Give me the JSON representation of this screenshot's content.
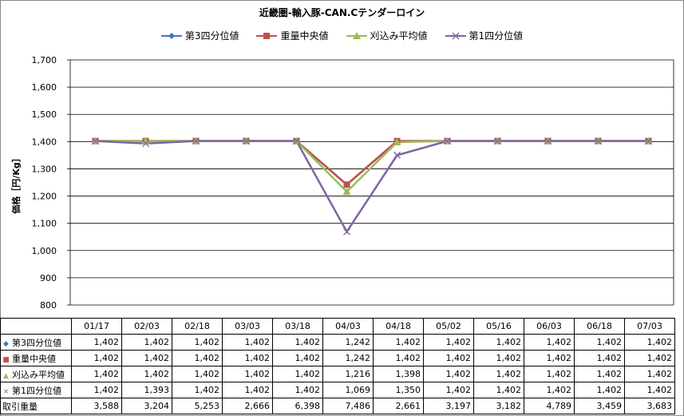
{
  "chart_data": {
    "type": "line",
    "title": "近畿圏-輸入豚-CAN.Cテンダーロイン",
    "ylabel": "価格［円/Kg］",
    "ylim": [
      800,
      1700
    ],
    "yticks": [
      "800",
      "900",
      "1,000",
      "1,100",
      "1,200",
      "1,300",
      "1,400",
      "1,500",
      "1,600",
      "1,700"
    ],
    "grid": true,
    "legend_position": "top",
    "categories": [
      "01/17",
      "02/03",
      "02/18",
      "03/03",
      "03/18",
      "04/03",
      "04/18",
      "05/02",
      "05/16",
      "06/03",
      "06/18",
      "07/03"
    ],
    "series": [
      {
        "name": "第3四分位値",
        "color": "#4472c4",
        "marker": "diamond",
        "values": [
          1402,
          1402,
          1402,
          1402,
          1402,
          1242,
          1402,
          1402,
          1402,
          1402,
          1402,
          1402
        ],
        "labels": [
          "1,402",
          "1,402",
          "1,402",
          "1,402",
          "1,402",
          "1,242",
          "1,402",
          "1,402",
          "1,402",
          "1,402",
          "1,402",
          "1,402"
        ]
      },
      {
        "name": "重量中央値",
        "color": "#c0504d",
        "marker": "square",
        "values": [
          1402,
          1402,
          1402,
          1402,
          1402,
          1242,
          1402,
          1402,
          1402,
          1402,
          1402,
          1402
        ],
        "labels": [
          "1,402",
          "1,402",
          "1,402",
          "1,402",
          "1,402",
          "1,242",
          "1,402",
          "1,402",
          "1,402",
          "1,402",
          "1,402",
          "1,402"
        ]
      },
      {
        "name": "刈込み平均値",
        "color": "#9bbb59",
        "marker": "triangle",
        "values": [
          1402,
          1402,
          1402,
          1402,
          1402,
          1216,
          1398,
          1402,
          1402,
          1402,
          1402,
          1402
        ],
        "labels": [
          "1,402",
          "1,402",
          "1,402",
          "1,402",
          "1,402",
          "1,216",
          "1,398",
          "1,402",
          "1,402",
          "1,402",
          "1,402",
          "1,402"
        ]
      },
      {
        "name": "第1四分位値",
        "color": "#8064a2",
        "marker": "x",
        "values": [
          1402,
          1393,
          1402,
          1402,
          1402,
          1069,
          1350,
          1402,
          1402,
          1402,
          1402,
          1402
        ],
        "labels": [
          "1,402",
          "1,393",
          "1,402",
          "1,402",
          "1,402",
          "1,069",
          "1,350",
          "1,402",
          "1,402",
          "1,402",
          "1,402",
          "1,402"
        ]
      }
    ],
    "extra_row": {
      "name": "取引重量",
      "labels": [
        "3,588",
        "3,204",
        "5,253",
        "2,666",
        "6,398",
        "7,486",
        "2,661",
        "3,197",
        "3,182",
        "4,789",
        "3,459",
        "3,683"
      ]
    }
  }
}
